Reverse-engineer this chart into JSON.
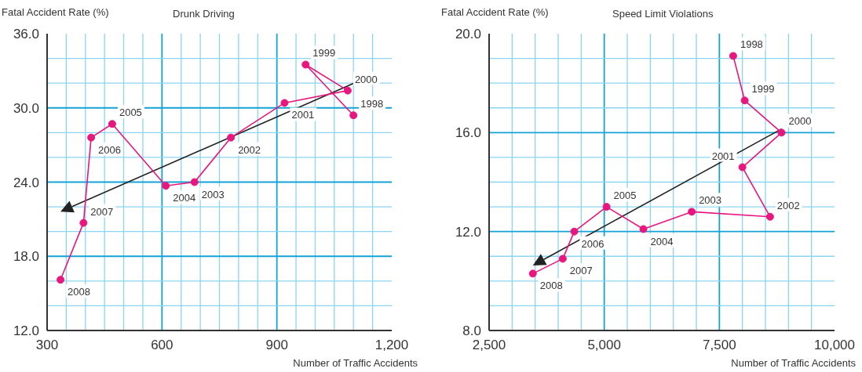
{
  "chart_data": [
    {
      "type": "line",
      "title": "Drunk Driving",
      "xlabel": "Number of Traffic Accidents",
      "ylabel": "Fatal Accident Rate (%)",
      "xlim": [
        300,
        1200
      ],
      "ylim": [
        12,
        36
      ],
      "xticks": [
        300,
        {
          "value": 350,
          "label": null
        },
        {
          "value": 400,
          "label": null
        },
        {
          "value": 450,
          "label": null
        },
        {
          "value": 500,
          "label": null
        },
        {
          "value": 550,
          "label": null
        },
        600,
        {
          "value": 650,
          "label": null
        },
        {
          "value": 700,
          "label": null
        },
        {
          "value": 750,
          "label": null
        },
        {
          "value": 800,
          "label": null
        },
        {
          "value": 850,
          "label": null
        },
        900,
        {
          "value": 950,
          "label": null
        },
        {
          "value": 1000,
          "label": null
        },
        {
          "value": 1050,
          "label": null
        },
        {
          "value": 1100,
          "label": null
        },
        {
          "value": 1150,
          "label": null
        },
        {
          "value": 1200,
          "label": "1,200"
        }
      ],
      "yticks": [
        {
          "value": 12,
          "label": "12.0"
        },
        {
          "value": 14,
          "label": null
        },
        {
          "value": 16,
          "label": null
        },
        {
          "value": 18,
          "label": "18.0"
        },
        {
          "value": 20,
          "label": null
        },
        {
          "value": 22,
          "label": null
        },
        {
          "value": 24,
          "label": "24.0"
        },
        {
          "value": 26,
          "label": null
        },
        {
          "value": 28,
          "label": null
        },
        {
          "value": 30,
          "label": "30.0"
        },
        {
          "value": 32,
          "label": null
        },
        {
          "value": 34,
          "label": null
        },
        {
          "value": 36,
          "label": "36.0"
        }
      ],
      "grid": true,
      "series": [
        {
          "color": "#e8177f",
          "marker": "circle",
          "x": [
            1100,
            975,
            1085,
            920,
            780,
            685,
            610,
            470,
            415,
            395,
            335
          ],
          "values": [
            29.4,
            33.5,
            31.4,
            30.4,
            27.6,
            24.0,
            23.7,
            28.7,
            27.6,
            20.7,
            16.1
          ]
        }
      ],
      "annotations": [
        {
          "text": "1998",
          "x": 1100,
          "y": 29.4
        },
        {
          "text": "1999",
          "x": 975,
          "y": 33.5
        },
        {
          "text": "2000",
          "x": 1085,
          "y": 31.4
        },
        {
          "text": "2001",
          "x": 920,
          "y": 30.4
        },
        {
          "text": "2002",
          "x": 780,
          "y": 27.6
        },
        {
          "text": "2003",
          "x": 685,
          "y": 24.0
        },
        {
          "text": "2004",
          "x": 610,
          "y": 23.7
        },
        {
          "text": "2005",
          "x": 470,
          "y": 28.7
        },
        {
          "text": "2006",
          "x": 415,
          "y": 27.6
        },
        {
          "text": "2007",
          "x": 395,
          "y": 20.7
        },
        {
          "text": "2008",
          "x": 335,
          "y": 16.1
        }
      ]
    },
    {
      "type": "line",
      "title": "Speed Limit Violations",
      "xlabel": "Number of Traffic Accidents",
      "ylabel": "Fatal Accident Rate (%)",
      "xlim": [
        2500,
        10000
      ],
      "ylim": [
        8,
        20
      ],
      "xticks": [
        {
          "value": 2500,
          "label": "2,500"
        },
        {
          "value": 3000,
          "label": null
        },
        {
          "value": 3500,
          "label": null
        },
        {
          "value": 4000,
          "label": null
        },
        {
          "value": 4500,
          "label": null
        },
        {
          "value": 5000,
          "label": "5,000"
        },
        {
          "value": 5500,
          "label": null
        },
        {
          "value": 6000,
          "label": null
        },
        {
          "value": 6500,
          "label": null
        },
        {
          "value": 7000,
          "label": null
        },
        {
          "value": 7500,
          "label": "7,500"
        },
        {
          "value": 8000,
          "label": null
        },
        {
          "value": 8500,
          "label": null
        },
        {
          "value": 9000,
          "label": null
        },
        {
          "value": 9500,
          "label": null
        },
        {
          "value": 10000,
          "label": "10,000"
        }
      ],
      "yticks": [
        {
          "value": 8,
          "label": "8.0"
        },
        {
          "value": 9,
          "label": null
        },
        {
          "value": 10,
          "label": null
        },
        {
          "value": 11,
          "label": null
        },
        {
          "value": 12,
          "label": "12.0"
        },
        {
          "value": 13,
          "label": null
        },
        {
          "value": 14,
          "label": null
        },
        {
          "value": 15,
          "label": null
        },
        {
          "value": 16,
          "label": "16.0"
        },
        {
          "value": 17,
          "label": null
        },
        {
          "value": 18,
          "label": null
        },
        {
          "value": 19,
          "label": null
        },
        {
          "value": 20,
          "label": "20.0"
        }
      ],
      "grid": true,
      "series": [
        {
          "color": "#e8177f",
          "marker": "circle",
          "x": [
            7800,
            8050,
            8850,
            8000,
            8600,
            6900,
            5850,
            5050,
            4350,
            4100,
            3450
          ],
          "values": [
            19.1,
            17.3,
            16.0,
            14.6,
            12.6,
            12.8,
            12.1,
            13.0,
            12.0,
            10.9,
            10.3
          ]
        }
      ],
      "annotations": [
        {
          "text": "1998",
          "x": 7800,
          "y": 19.1
        },
        {
          "text": "1999",
          "x": 8050,
          "y": 17.3
        },
        {
          "text": "2000",
          "x": 8850,
          "y": 16.0
        },
        {
          "text": "2001",
          "x": 8000,
          "y": 14.6
        },
        {
          "text": "2002",
          "x": 8600,
          "y": 12.6
        },
        {
          "text": "2003",
          "x": 6900,
          "y": 12.8
        },
        {
          "text": "2004",
          "x": 5850,
          "y": 12.1
        },
        {
          "text": "2005",
          "x": 5050,
          "y": 13.0
        },
        {
          "text": "2006",
          "x": 4350,
          "y": 12.0
        },
        {
          "text": "2007",
          "x": 4100,
          "y": 10.9
        },
        {
          "text": "2008",
          "x": 3450,
          "y": 10.3
        }
      ]
    }
  ]
}
